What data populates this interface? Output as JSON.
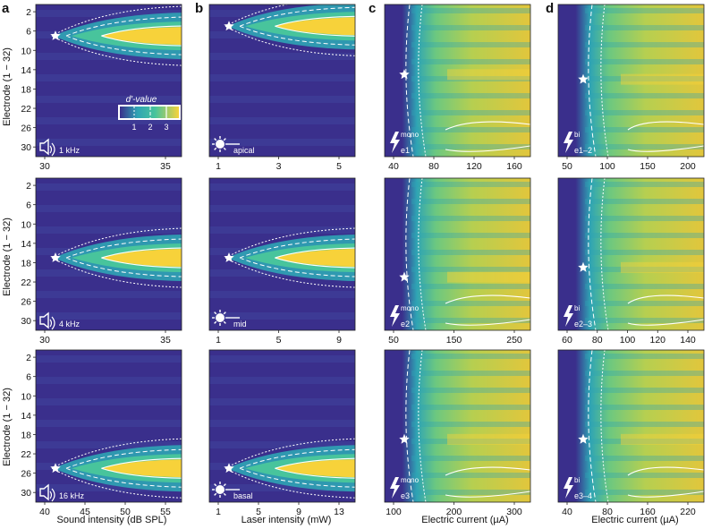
{
  "colors": {
    "dark": "#3a2f8c",
    "mid": "#2fa4b4",
    "teal": "#48c49c",
    "high": "#f7d23a",
    "contour": "#ffffff"
  },
  "figure": {
    "panel_letters": [
      "a",
      "b",
      "c",
      "d"
    ],
    "ylabel": "Electrode (1 − 32)",
    "yticks": [
      "2",
      "6",
      "10",
      "14",
      "18",
      "22",
      "26",
      "30"
    ],
    "colorbar": {
      "label": "d′-value",
      "ticks": [
        "1",
        "2",
        "3"
      ]
    },
    "xlabels": [
      "Sound intensity (dB SPL)",
      "Laser intensity (mW)",
      "Electric current (µA)",
      "Electric current (µA)"
    ]
  },
  "chart_data": [
    {
      "type": "heatmap",
      "panel": "a",
      "row": 1,
      "stim": "1 kHz",
      "xticks": [
        "30",
        "35"
      ],
      "best_electrode": 7
    },
    {
      "type": "heatmap",
      "panel": "b",
      "row": 1,
      "stim": "apical",
      "xticks": [
        "1",
        "3",
        "5"
      ],
      "best_electrode": 5
    },
    {
      "type": "heatmap",
      "panel": "c",
      "row": 1,
      "stim_sup": "mono",
      "stim_sub": "e1",
      "xticks": [
        "40",
        "80",
        "120",
        "160"
      ],
      "best_electrode": 15
    },
    {
      "type": "heatmap",
      "panel": "d",
      "row": 1,
      "stim_sup": "bi",
      "stim_sub": "e1–2",
      "xticks": [
        "50",
        "100",
        "150",
        "200"
      ],
      "best_electrode": 16
    },
    {
      "type": "heatmap",
      "panel": "a",
      "row": 2,
      "stim": "4 kHz",
      "xticks": [
        "30",
        "35"
      ],
      "best_electrode": 17
    },
    {
      "type": "heatmap",
      "panel": "b",
      "row": 2,
      "stim": "mid",
      "xticks": [
        "1",
        "5",
        "9"
      ],
      "best_electrode": 17
    },
    {
      "type": "heatmap",
      "panel": "c",
      "row": 2,
      "stim_sup": "mono",
      "stim_sub": "e2",
      "xticks": [
        "50",
        "150",
        "250"
      ],
      "best_electrode": 21
    },
    {
      "type": "heatmap",
      "panel": "d",
      "row": 2,
      "stim_sup": "bi",
      "stim_sub": "e2–3",
      "xticks": [
        "60",
        "80",
        "100",
        "120",
        "140"
      ],
      "best_electrode": 19
    },
    {
      "type": "heatmap",
      "panel": "a",
      "row": 3,
      "stim": "16 kHz",
      "xticks": [
        "40",
        "45",
        "50",
        "55"
      ],
      "best_electrode": 25
    },
    {
      "type": "heatmap",
      "panel": "b",
      "row": 3,
      "stim": "basal",
      "xticks": [
        "1",
        "5",
        "9",
        "13"
      ],
      "best_electrode": 25
    },
    {
      "type": "heatmap",
      "panel": "c",
      "row": 3,
      "stim_sup": "mono",
      "stim_sub": "e3",
      "xticks": [
        "100",
        "200",
        "300"
      ],
      "best_electrode": 19
    },
    {
      "type": "heatmap",
      "panel": "d",
      "row": 3,
      "stim_sup": "bi",
      "stim_sub": "e3–4",
      "xticks": [
        "40",
        "80",
        "160",
        "220"
      ],
      "best_electrode": 19
    }
  ]
}
